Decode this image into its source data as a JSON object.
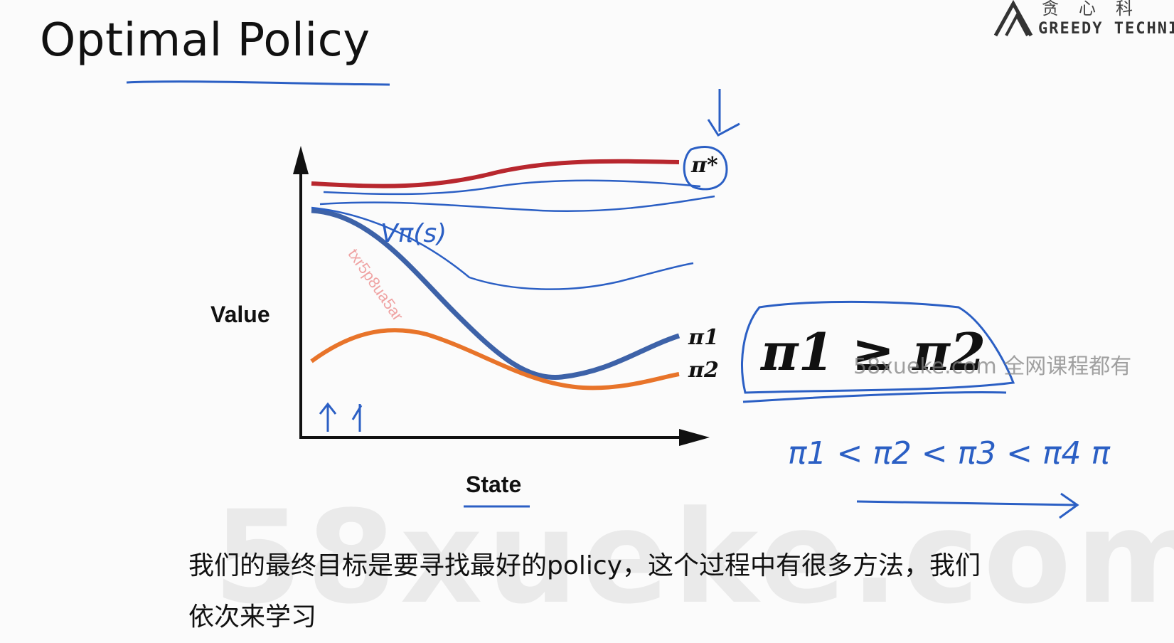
{
  "slide": {
    "title": "Optimal Policy",
    "value_label": "Value",
    "state_label": "State",
    "pi_star": "π*",
    "pi1": "π1",
    "pi2": "π2",
    "inequality": "π1 ≥ π2",
    "note_vpi": "Vπ(s)",
    "note_sequence": "π1 < π2 < π3 < π4   π"
  },
  "subtitle": {
    "line1": "我们的最终目标是要寻找最好的policy，这个过程中有很多方法，我们",
    "line2": "依次来学习"
  },
  "watermark": {
    "big": "58xueke.com",
    "mid": "58xueke.com 全网课程都有",
    "red": "txr5p8ua5ar",
    "logo_cn": "贪心科",
    "logo_en": "GREEDY TECHNI"
  },
  "colors": {
    "red_curve": "#b8272e",
    "blue_curve": "#3d62a8",
    "orange_curve": "#e8742a",
    "annotation_blue": "#2b5fc4"
  }
}
